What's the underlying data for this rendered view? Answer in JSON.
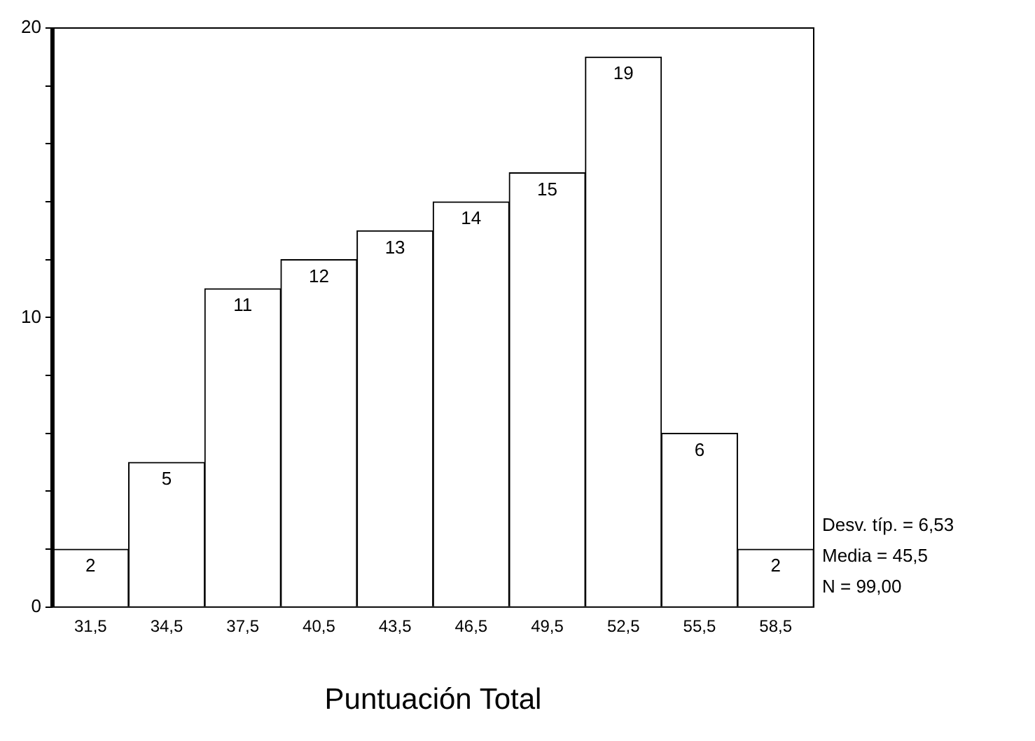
{
  "chart_data": {
    "type": "histogram",
    "bins": [
      30,
      33,
      36,
      39,
      42,
      45,
      48,
      51,
      54,
      57,
      60
    ],
    "values": [
      2,
      5,
      11,
      12,
      13,
      14,
      15,
      19,
      6,
      2
    ],
    "color": "#ffffff",
    "xlabel": "Puntuación Total",
    "xlim": [
      30,
      60
    ],
    "xticks": [
      {
        "value": 31.5,
        "label": "31,5"
      },
      {
        "value": 34.5,
        "label": "34,5"
      },
      {
        "value": 37.5,
        "label": "37,5"
      },
      {
        "value": 40.5,
        "label": "40,5"
      },
      {
        "value": 43.5,
        "label": "43,5"
      },
      {
        "value": 46.5,
        "label": "46,5"
      },
      {
        "value": 49.5,
        "label": "49,5"
      },
      {
        "value": 52.5,
        "label": "52,5"
      },
      {
        "value": 55.5,
        "label": "55,5"
      },
      {
        "value": 58.5,
        "label": "58,5"
      }
    ],
    "ylim": [
      0,
      20
    ],
    "yticks": [
      0,
      {
        "value": 2,
        "label": null
      },
      {
        "value": 4,
        "label": null
      },
      {
        "value": 6,
        "label": null
      },
      {
        "value": 8,
        "label": null
      },
      10,
      {
        "value": 12,
        "label": null
      },
      {
        "value": 14,
        "label": null
      },
      {
        "value": 16,
        "label": null
      },
      {
        "value": 18,
        "label": null
      },
      20
    ],
    "grid": false,
    "legend": false,
    "data_labels": true,
    "annotations": [
      "Desv. típ. = 6,53",
      "Media = 45,5",
      "N = 99,00"
    ]
  }
}
